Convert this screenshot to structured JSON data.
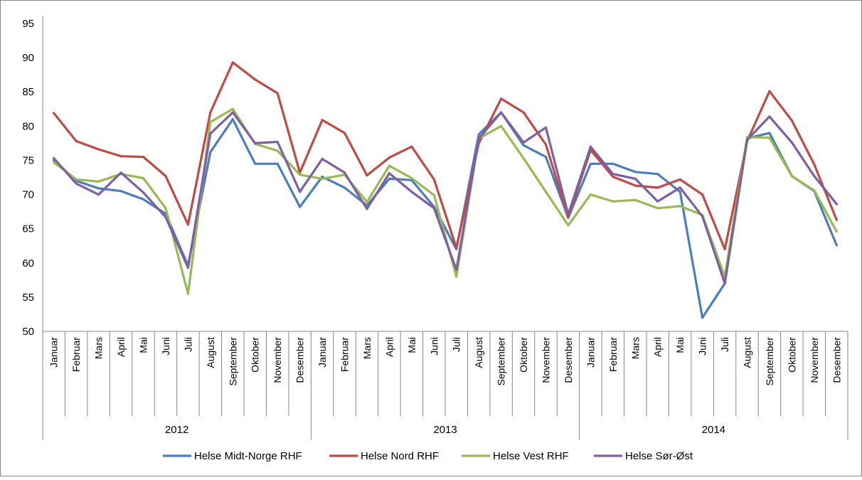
{
  "chart_data": {
    "type": "line",
    "title": "",
    "xlabel": "",
    "ylabel": "",
    "ylim": [
      50,
      95
    ],
    "yticks": [
      "50",
      "55",
      "60",
      "65",
      "70",
      "75",
      "80",
      "85",
      "90",
      "95"
    ],
    "grid": false,
    "legend_position": "bottom",
    "years": [
      "2012",
      "2013",
      "2014"
    ],
    "months": [
      "Januar",
      "Februar",
      "Mars",
      "April",
      "Mai",
      "Juni",
      "Juli",
      "August",
      "September",
      "Oktober",
      "November",
      "Desember"
    ],
    "series": [
      {
        "name": "Helse Midt-Norge RHF",
        "color": "#4a7ebb",
        "values": [
          75.0,
          72.0,
          70.9,
          70.5,
          69.3,
          67.2,
          59.6,
          76.2,
          81.0,
          74.5,
          74.5,
          68.2,
          72.6,
          71.0,
          68.4,
          72.3,
          72.1,
          68.2,
          62.0,
          78.8,
          82.0,
          77.2,
          75.5,
          66.6,
          74.5,
          74.5,
          73.3,
          73.0,
          70.4,
          52.0,
          57.0,
          78.2,
          79.0,
          72.7,
          70.5,
          62.6
        ]
      },
      {
        "name": "Helse Nord RHF",
        "color": "#be4b48",
        "values": [
          81.9,
          77.8,
          76.6,
          75.6,
          75.5,
          72.7,
          65.6,
          82.0,
          89.3,
          86.8,
          84.8,
          73.2,
          80.9,
          79.0,
          72.8,
          75.4,
          77.0,
          72.2,
          62.2,
          77.5,
          84.0,
          82.0,
          77.3,
          66.7,
          76.5,
          72.6,
          71.3,
          71.0,
          72.2,
          70.0,
          62.0,
          77.8,
          85.1,
          80.8,
          74.4,
          66.3
        ]
      },
      {
        "name": "Helse Vest RHF",
        "color": "#98b954",
        "values": [
          74.7,
          72.2,
          71.9,
          73.0,
          72.4,
          68.0,
          55.5,
          80.6,
          82.5,
          77.4,
          76.4,
          72.9,
          72.3,
          72.9,
          68.9,
          74.2,
          72.4,
          69.9,
          58.0,
          78.2,
          80.0,
          75.3,
          70.4,
          65.5,
          70.0,
          69.0,
          69.2,
          68.0,
          68.3,
          67.0,
          58.0,
          78.4,
          78.3,
          72.7,
          70.6,
          64.6
        ]
      },
      {
        "name": "Helse Sør-Øst",
        "color": "#7d60a0",
        "values": [
          75.3,
          71.6,
          70.0,
          73.2,
          70.3,
          66.7,
          59.3,
          78.9,
          82.0,
          77.5,
          77.7,
          70.4,
          75.2,
          73.2,
          67.9,
          73.1,
          70.4,
          68.0,
          59.0,
          78.2,
          82.0,
          77.6,
          79.8,
          67.1,
          77.0,
          73.0,
          72.3,
          69.0,
          71.0,
          66.8,
          57.0,
          78.0,
          81.4,
          77.6,
          72.7,
          68.6
        ]
      }
    ]
  }
}
